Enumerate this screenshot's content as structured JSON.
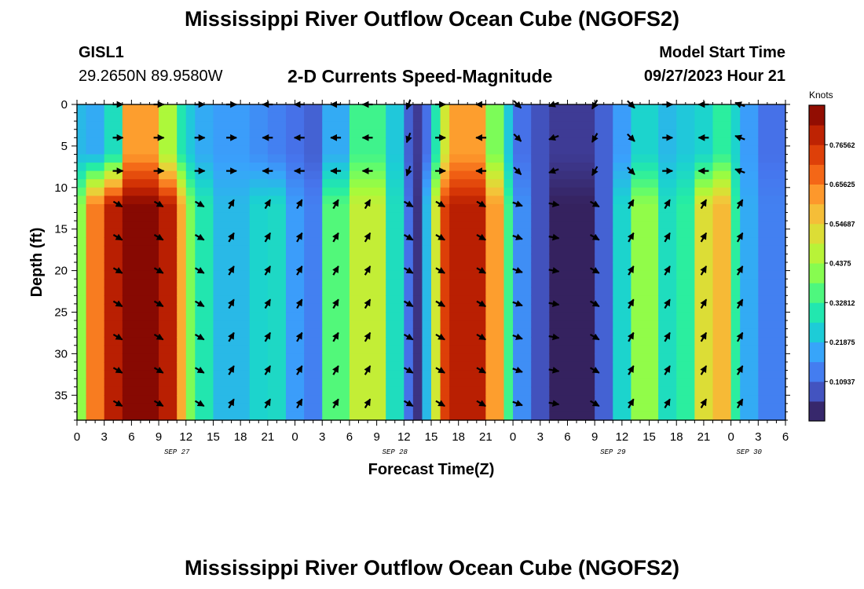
{
  "header": {
    "title": "Mississippi River Outflow Ocean Cube (NGOFS2)",
    "station": "GISL1",
    "coordinates": "29.2650N  89.9580W",
    "subtitle": "2-D Currents Speed-Magnitude",
    "model_start_label": "Model Start Time",
    "model_start_value": "09/27/2023 Hour 21"
  },
  "footer": {
    "title": "Mississippi River Outflow Ocean Cube (NGOFS2)"
  },
  "colors": {
    "scale": [
      "#30123b",
      "#4145ab",
      "#4675ed",
      "#39a2fc",
      "#1bcfd4",
      "#24eca6",
      "#61fc6c",
      "#a4fc3b",
      "#d1e834",
      "#f3c63a",
      "#fe9b2d",
      "#f36315",
      "#d93806",
      "#b11901",
      "#7a0402"
    ]
  },
  "chart_data": {
    "type": "heatmap",
    "xlabel": "Forecast Time(Z)",
    "ylabel": "Depth (ft)",
    "xlim": [
      0,
      78
    ],
    "ylim": [
      38,
      0
    ],
    "x_tick_labels": [
      "0",
      "3",
      "6",
      "9",
      "12",
      "15",
      "18",
      "21",
      "0",
      "3",
      "6",
      "9",
      "12",
      "15",
      "18",
      "21",
      "0",
      "3",
      "6",
      "9",
      "12",
      "15",
      "18",
      "21",
      "0",
      "3",
      "6"
    ],
    "y_tick_values": [
      0,
      5,
      10,
      15,
      20,
      25,
      30,
      35
    ],
    "y_tick_labels": [
      "0",
      "5",
      "10",
      "15",
      "20",
      "25",
      "30",
      "35"
    ],
    "date_labels": [
      {
        "text": "SEP 27",
        "hour": 11
      },
      {
        "text": "SEP 28",
        "hour": 35
      },
      {
        "text": "SEP 29",
        "hour": 59
      },
      {
        "text": "SEP 30",
        "hour": 74
      }
    ],
    "colorbar": {
      "label": "Knots",
      "range": [
        0,
        0.875
      ],
      "tick_values": [
        0.10937,
        0.21875,
        0.32812,
        0.4375,
        0.54687,
        0.65625,
        0.76562
      ],
      "tick_labels": [
        "0.10937",
        "0.21875",
        "0.32812",
        "0.4375",
        "0.54687",
        "0.65625",
        "0.76562"
      ]
    },
    "speed_bands": [
      {
        "start": 0,
        "end": 1,
        "surface": 0.22,
        "deep": 0.42
      },
      {
        "start": 1,
        "end": 3,
        "surface": 0.2,
        "deep": 0.66
      },
      {
        "start": 3,
        "end": 5,
        "surface": 0.28,
        "deep": 0.8
      },
      {
        "start": 5,
        "end": 9,
        "surface": 0.62,
        "deep": 0.86
      },
      {
        "start": 9,
        "end": 11,
        "surface": 0.45,
        "deep": 0.8
      },
      {
        "start": 11,
        "end": 12,
        "surface": 0.3,
        "deep": 0.6
      },
      {
        "start": 12,
        "end": 13,
        "surface": 0.24,
        "deep": 0.4
      },
      {
        "start": 13,
        "end": 15,
        "surface": 0.2,
        "deep": 0.3
      },
      {
        "start": 15,
        "end": 19,
        "surface": 0.18,
        "deep": 0.22
      },
      {
        "start": 19,
        "end": 21,
        "surface": 0.16,
        "deep": 0.26
      },
      {
        "start": 21,
        "end": 23,
        "surface": 0.14,
        "deep": 0.27
      },
      {
        "start": 23,
        "end": 25,
        "surface": 0.12,
        "deep": 0.18
      },
      {
        "start": 25,
        "end": 27,
        "surface": 0.1,
        "deep": 0.14
      },
      {
        "start": 27,
        "end": 30,
        "surface": 0.2,
        "deep": 0.36
      },
      {
        "start": 30,
        "end": 34,
        "surface": 0.34,
        "deep": 0.48
      },
      {
        "start": 34,
        "end": 36,
        "surface": 0.24,
        "deep": 0.28
      },
      {
        "start": 36,
        "end": 37,
        "surface": 0.1,
        "deep": 0.12
      },
      {
        "start": 37,
        "end": 38,
        "surface": 0.05,
        "deep": 0.04
      },
      {
        "start": 38,
        "end": 39,
        "surface": 0.12,
        "deep": 0.22
      },
      {
        "start": 39,
        "end": 40,
        "surface": 0.3,
        "deep": 0.5
      },
      {
        "start": 40,
        "end": 41,
        "surface": 0.5,
        "deep": 0.74
      },
      {
        "start": 41,
        "end": 45,
        "surface": 0.62,
        "deep": 0.8
      },
      {
        "start": 45,
        "end": 47,
        "surface": 0.4,
        "deep": 0.62
      },
      {
        "start": 47,
        "end": 48,
        "surface": 0.24,
        "deep": 0.34
      },
      {
        "start": 48,
        "end": 50,
        "surface": 0.12,
        "deep": 0.16
      },
      {
        "start": 50,
        "end": 52,
        "surface": 0.08,
        "deep": 0.08
      },
      {
        "start": 52,
        "end": 57,
        "surface": 0.05,
        "deep": 0.02
      },
      {
        "start": 57,
        "end": 59,
        "surface": 0.1,
        "deep": 0.1
      },
      {
        "start": 59,
        "end": 61,
        "surface": 0.18,
        "deep": 0.26
      },
      {
        "start": 61,
        "end": 64,
        "surface": 0.26,
        "deep": 0.42
      },
      {
        "start": 64,
        "end": 66,
        "surface": 0.22,
        "deep": 0.28
      },
      {
        "start": 66,
        "end": 68,
        "surface": 0.24,
        "deep": 0.32
      },
      {
        "start": 68,
        "end": 70,
        "surface": 0.26,
        "deep": 0.52
      },
      {
        "start": 70,
        "end": 72,
        "surface": 0.32,
        "deep": 0.58
      },
      {
        "start": 72,
        "end": 73,
        "surface": 0.26,
        "deep": 0.32
      },
      {
        "start": 73,
        "end": 75,
        "surface": 0.18,
        "deep": 0.2
      },
      {
        "start": 75,
        "end": 78,
        "surface": 0.12,
        "deep": 0.14
      }
    ],
    "vectors": {
      "times": [
        4.5,
        9,
        13.5,
        17,
        21,
        24.5,
        28.5,
        32,
        36.5,
        40,
        44.5,
        48.5,
        52.5,
        57,
        61,
        65,
        69,
        73
      ],
      "depths": [
        0,
        4,
        8,
        12,
        16,
        20,
        24,
        28,
        32,
        36
      ],
      "surface_dir_deg": [
        0,
        0,
        0,
        0,
        180,
        180,
        180,
        180,
        110,
        0,
        180,
        45,
        160,
        120,
        45,
        0,
        180,
        200
      ],
      "deep_dir_deg": [
        30,
        30,
        30,
        300,
        300,
        300,
        300,
        300,
        30,
        30,
        30,
        20,
        10,
        30,
        300,
        300,
        300,
        300
      ],
      "surface_depth_limit": 8
    }
  }
}
